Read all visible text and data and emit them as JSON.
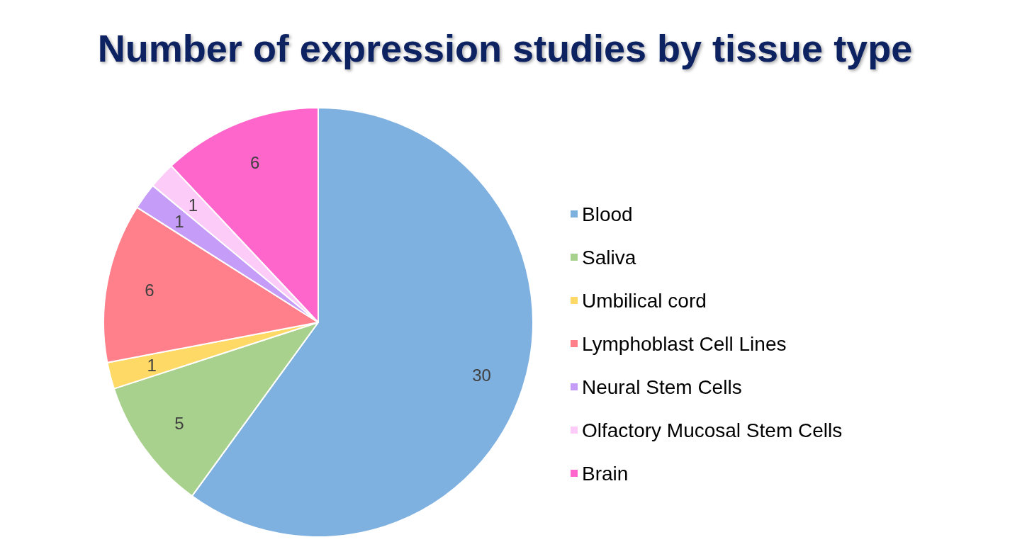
{
  "chart_data": {
    "type": "pie",
    "title": "Number of expression studies by tissue type",
    "categories": [
      "Blood",
      "Saliva",
      "Umbilical cord",
      "Lymphoblast Cell Lines",
      "Neural Stem Cells",
      "Olfactory Mucosal Stem Cells",
      "Brain"
    ],
    "values": [
      30,
      5,
      1,
      6,
      1,
      1,
      6
    ],
    "colors": [
      "#7eb0e0",
      "#a9d18e",
      "#ffd966",
      "#ff7f8a",
      "#c59cf7",
      "#fccbf7",
      "#ff66cc"
    ],
    "data_labels": true,
    "legend": "right"
  }
}
